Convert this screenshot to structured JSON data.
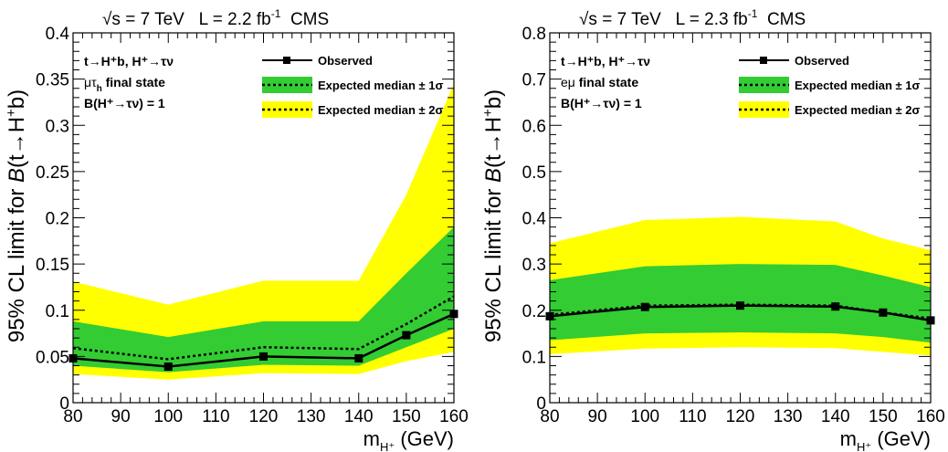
{
  "chart_data": [
    {
      "type": "line",
      "header": {
        "energy": "√s = 7 TeV",
        "lumi": "L = 2.2 fb",
        "lumi_exp": "-1",
        "experiment": "CMS"
      },
      "process": "t→H⁺b, H⁺→τν",
      "final_state": "μτ",
      "final_state_sub": "h",
      "final_state_suffix": " final state",
      "br_text": "B(H⁺→τν) = 1",
      "xlabel": "m",
      "xlabel_sub": "H⁺",
      "xlabel_unit": " (GeV)",
      "ylabel_prefix": "95% CL limit for ",
      "ylabel_b": "B",
      "ylabel_rest": "(t→H",
      "ylabel_sup": "+",
      "ylabel_end": "b)",
      "xlim": [
        80,
        160
      ],
      "ylim": [
        0,
        0.4
      ],
      "xticks": [
        80,
        90,
        100,
        110,
        120,
        130,
        140,
        150,
        160
      ],
      "yticks": [
        0,
        0.05,
        0.1,
        0.15,
        0.2,
        0.25,
        0.3,
        0.35,
        0.4
      ],
      "ytick_labels": [
        "0",
        "0.05",
        "0.1",
        "0.15",
        "0.2",
        "0.25",
        "0.3",
        "0.35",
        "0.4"
      ],
      "legend": {
        "observed": "Observed",
        "exp1": "Expected median ± 1σ",
        "exp2": "Expected median ± 2σ"
      },
      "x": [
        80,
        100,
        120,
        140,
        150,
        160
      ],
      "series": [
        {
          "name": "Observed",
          "values": [
            0.048,
            0.039,
            0.05,
            0.048,
            0.073,
            0.096
          ]
        },
        {
          "name": "Expected median",
          "values": [
            0.059,
            0.047,
            0.06,
            0.058,
            0.085,
            0.115
          ]
        },
        {
          "name": "± 1σ",
          "low": [
            0.04,
            0.033,
            0.041,
            0.04,
            0.06,
            0.08
          ],
          "high": [
            0.088,
            0.071,
            0.088,
            0.088,
            0.14,
            0.19
          ]
        },
        {
          "name": "± 2σ",
          "low": [
            0.031,
            0.025,
            0.032,
            0.031,
            0.045,
            0.055
          ],
          "high": [
            0.131,
            0.106,
            0.132,
            0.132,
            0.225,
            0.345
          ]
        }
      ],
      "colors": {
        "band1": "#33cc33",
        "band2": "#ffff00",
        "line": "#000000"
      }
    },
    {
      "type": "line",
      "header": {
        "energy": "√s = 7 TeV",
        "lumi": "L = 2.3 fb",
        "lumi_exp": "-1",
        "experiment": "CMS"
      },
      "process": "t→H⁺b, H⁺→τν",
      "final_state": "eμ",
      "final_state_sub": "",
      "final_state_suffix": " final state",
      "br_text": "B(H⁺→τν) = 1",
      "xlabel": "m",
      "xlabel_sub": "H⁺",
      "xlabel_unit": " (GeV)",
      "ylabel_prefix": "95% CL limit for ",
      "ylabel_b": "B",
      "ylabel_rest": "(t→H",
      "ylabel_sup": "+",
      "ylabel_end": "b)",
      "xlim": [
        80,
        160
      ],
      "ylim": [
        0,
        0.8
      ],
      "xticks": [
        80,
        90,
        100,
        110,
        120,
        130,
        140,
        150,
        160
      ],
      "yticks": [
        0,
        0.1,
        0.2,
        0.3,
        0.4,
        0.5,
        0.6,
        0.7,
        0.8
      ],
      "ytick_labels": [
        "0",
        "0.1",
        "0.2",
        "0.3",
        "0.4",
        "0.5",
        "0.6",
        "0.7",
        "0.8"
      ],
      "legend": {
        "observed": "Observed",
        "exp1": "Expected median ± 1σ",
        "exp2": "Expected median ± 2σ"
      },
      "x": [
        80,
        100,
        120,
        140,
        150,
        160
      ],
      "series": [
        {
          "name": "Observed",
          "values": [
            0.187,
            0.207,
            0.21,
            0.208,
            0.195,
            0.178
          ]
        },
        {
          "name": "Expected median",
          "values": [
            0.19,
            0.21,
            0.212,
            0.21,
            0.195,
            0.182
          ]
        },
        {
          "name": "± 1σ",
          "low": [
            0.135,
            0.15,
            0.152,
            0.15,
            0.142,
            0.13
          ],
          "high": [
            0.265,
            0.295,
            0.3,
            0.298,
            0.275,
            0.25
          ]
        },
        {
          "name": "± 2σ",
          "low": [
            0.105,
            0.117,
            0.12,
            0.118,
            0.11,
            0.102
          ],
          "high": [
            0.345,
            0.395,
            0.402,
            0.392,
            0.355,
            0.33
          ]
        }
      ],
      "colors": {
        "band1": "#33cc33",
        "band2": "#ffff00",
        "line": "#000000"
      }
    }
  ]
}
